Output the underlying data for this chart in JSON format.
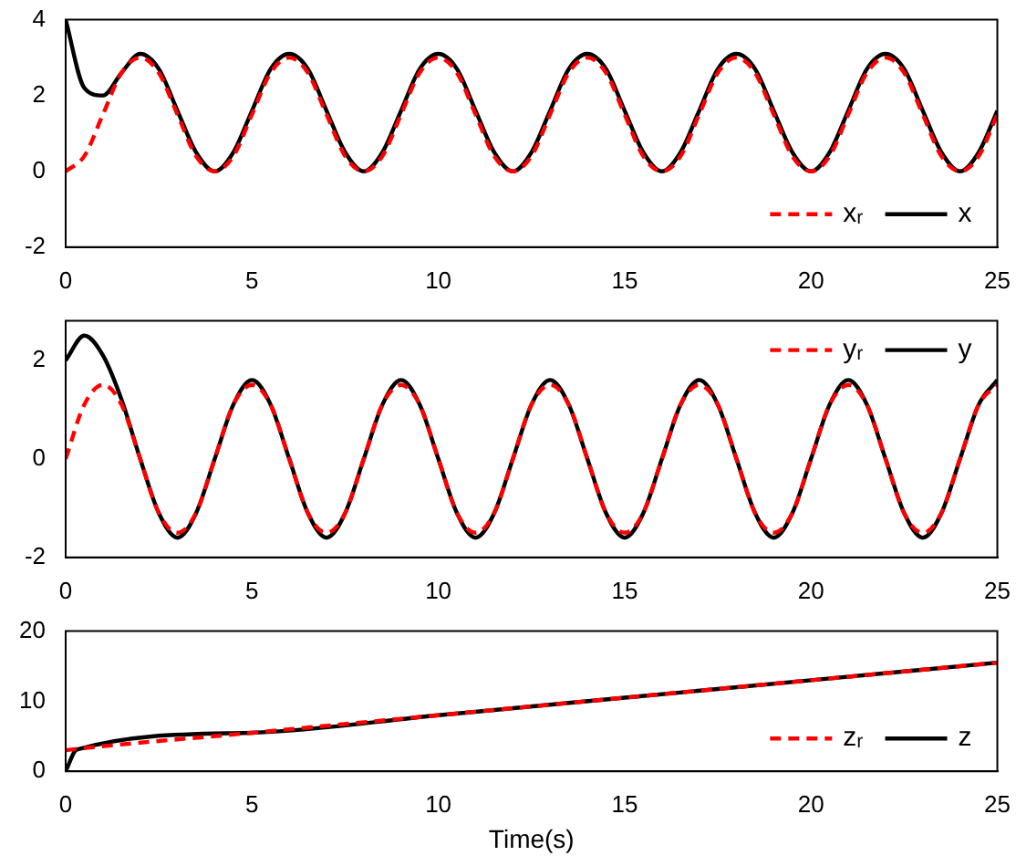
{
  "chart_data": [
    {
      "type": "line",
      "x": [
        0,
        0.5,
        1,
        1.5,
        2,
        2.5,
        3,
        3.5,
        4,
        4.5,
        5,
        5.5,
        6,
        6.5,
        7,
        7.5,
        8,
        8.5,
        9,
        9.5,
        10,
        10.5,
        11,
        11.5,
        12,
        12.5,
        13,
        13.5,
        14,
        14.5,
        15,
        15.5,
        16,
        16.5,
        17,
        17.5,
        18,
        18.5,
        19,
        19.5,
        20,
        20.5,
        21,
        21.5,
        22,
        22.5,
        23,
        23.5,
        24,
        24.5,
        25
      ],
      "series": [
        {
          "name": "xᵣ",
          "color": "#ff0000",
          "line_style": "dashed",
          "values": [
            0,
            0.4,
            1.5,
            2.6,
            3,
            2.6,
            1.5,
            0.4,
            0,
            0.4,
            1.5,
            2.6,
            3,
            2.6,
            1.5,
            0.4,
            0,
            0.4,
            1.5,
            2.6,
            3,
            2.6,
            1.5,
            0.4,
            0,
            0.4,
            1.5,
            2.6,
            3,
            2.6,
            1.5,
            0.4,
            0,
            0.4,
            1.5,
            2.6,
            3,
            2.6,
            1.5,
            0.4,
            0,
            0.4,
            1.5,
            2.6,
            3,
            2.6,
            1.5,
            0.4,
            0,
            0.4,
            1.5
          ]
        },
        {
          "name": "x",
          "color": "#000000",
          "line_style": "solid",
          "values": [
            4,
            2.2,
            2,
            2.6,
            3.1,
            2.7,
            1.6,
            0.5,
            0,
            0.5,
            1.6,
            2.7,
            3.1,
            2.7,
            1.6,
            0.5,
            0,
            0.5,
            1.6,
            2.7,
            3.1,
            2.7,
            1.6,
            0.5,
            0,
            0.5,
            1.6,
            2.7,
            3.1,
            2.7,
            1.6,
            0.5,
            0,
            0.5,
            1.6,
            2.7,
            3.1,
            2.7,
            1.6,
            0.5,
            0,
            0.5,
            1.6,
            2.7,
            3.1,
            2.7,
            1.6,
            0.5,
            0,
            0.5,
            1.6
          ]
        }
      ],
      "xlim": [
        0,
        25
      ],
      "xticks": [
        0,
        5,
        10,
        15,
        20,
        25
      ],
      "ylim": [
        -2,
        4
      ],
      "yticks": [
        -2,
        0,
        2,
        4
      ],
      "legend": "bottom right"
    },
    {
      "type": "line",
      "x": [
        0,
        0.5,
        1,
        1.5,
        2,
        2.5,
        3,
        3.5,
        4,
        4.5,
        5,
        5.5,
        6,
        6.5,
        7,
        7.5,
        8,
        8.5,
        9,
        9.5,
        10,
        10.5,
        11,
        11.5,
        12,
        12.5,
        13,
        13.5,
        14,
        14.5,
        15,
        15.5,
        16,
        16.5,
        17,
        17.5,
        18,
        18.5,
        19,
        19.5,
        20,
        20.5,
        21,
        21.5,
        22,
        22.5,
        23,
        23.5,
        24,
        24.5,
        25
      ],
      "series": [
        {
          "name": "yᵣ",
          "color": "#ff0000",
          "line_style": "dashed",
          "values": [
            0,
            1.1,
            1.5,
            1.1,
            0,
            -1.1,
            -1.5,
            -1.1,
            0,
            1.1,
            1.5,
            1.1,
            0,
            -1.1,
            -1.5,
            -1.1,
            0,
            1.1,
            1.5,
            1.1,
            0,
            -1.1,
            -1.5,
            -1.1,
            0,
            1.1,
            1.5,
            1.1,
            0,
            -1.1,
            -1.5,
            -1.1,
            0,
            1.1,
            1.5,
            1.1,
            0,
            -1.1,
            -1.5,
            -1.1,
            0,
            1.1,
            1.5,
            1.1,
            0,
            -1.1,
            -1.5,
            -1.1,
            0,
            1.1,
            1.5
          ]
        },
        {
          "name": "y",
          "color": "#000000",
          "line_style": "solid",
          "values": [
            2,
            2.5,
            2.1,
            1.2,
            0,
            -1.1,
            -1.6,
            -1.1,
            0,
            1.1,
            1.6,
            1.1,
            0,
            -1.1,
            -1.6,
            -1.1,
            0,
            1.1,
            1.6,
            1.1,
            0,
            -1.1,
            -1.6,
            -1.1,
            0,
            1.1,
            1.6,
            1.1,
            0,
            -1.1,
            -1.6,
            -1.1,
            0,
            1.1,
            1.6,
            1.1,
            0,
            -1.1,
            -1.6,
            -1.1,
            0,
            1.1,
            1.6,
            1.1,
            0,
            -1.1,
            -1.6,
            -1.1,
            0,
            1.1,
            1.6
          ]
        }
      ],
      "xlim": [
        0,
        25
      ],
      "xticks": [
        0,
        5,
        10,
        15,
        20,
        25
      ],
      "ylim": [
        -2,
        2.8
      ],
      "yticks": [
        -2,
        0,
        2
      ],
      "legend": "top right"
    },
    {
      "type": "line",
      "x": [
        0,
        0.3,
        5,
        10,
        15,
        20,
        25
      ],
      "xlabel": "Time(s)",
      "series": [
        {
          "name": "zᵣ",
          "color": "#ff0000",
          "line_style": "dashed",
          "values": [
            3,
            3.2,
            5.5,
            8,
            10.5,
            13,
            15.5
          ]
        },
        {
          "name": "z",
          "color": "#000000",
          "line_style": "solid",
          "values": [
            0,
            3.1,
            5.5,
            8,
            10.5,
            13,
            15.5
          ]
        }
      ],
      "xlim": [
        0,
        25
      ],
      "xticks": [
        0,
        5,
        10,
        15,
        20,
        25
      ],
      "ylim": [
        0,
        20
      ],
      "yticks": [
        0,
        10,
        20
      ],
      "legend": "bottom right"
    }
  ]
}
